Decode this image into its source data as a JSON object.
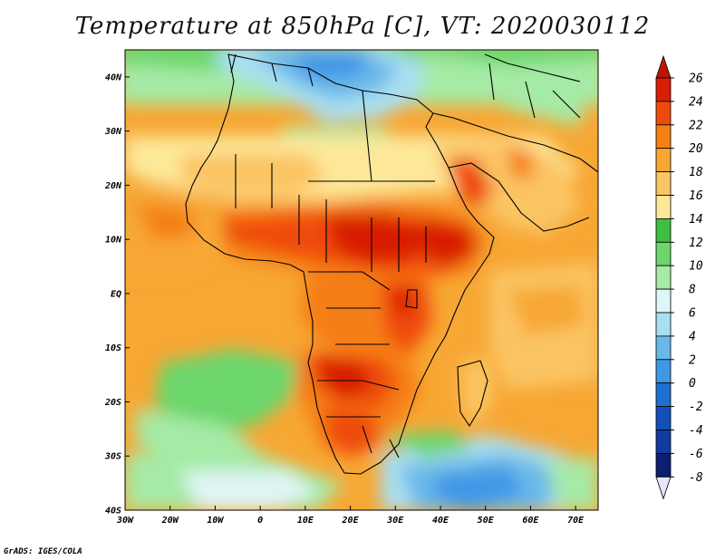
{
  "title": "Temperature at 850hPa [C], VT: 2020030112",
  "credit": "GrADS: IGES/COLA",
  "map": {
    "lat_range": [
      -40,
      45
    ],
    "lon_range": [
      -30,
      75
    ],
    "lat_labels": [
      "40N",
      "30N",
      "20N",
      "10N",
      "EQ",
      "10S",
      "20S",
      "30S",
      "40S"
    ],
    "lon_labels": [
      "30W",
      "20W",
      "10W",
      "0",
      "10E",
      "20E",
      "30E",
      "40E",
      "50E",
      "60E",
      "70E"
    ],
    "features": [
      "Mediterranean Sea",
      "Red Sea",
      "Arabian Peninsula",
      "Madagascar",
      "Lake Victoria"
    ]
  },
  "colorbar": {
    "levels": [
      "26",
      "24",
      "22",
      "20",
      "18",
      "16",
      "14",
      "12",
      "10",
      "8",
      "6",
      "4",
      "2",
      "0",
      "-2",
      "-4",
      "-6",
      "-8"
    ],
    "colors": [
      "#d81e05",
      "#ef4b08",
      "#f57f12",
      "#f7a734",
      "#fbc564",
      "#fde89a",
      "#3fbf3f",
      "#6cd66c",
      "#a5eaa5",
      "#dff5f6",
      "#a9dff0",
      "#6ab8ea",
      "#3f98e6",
      "#1f6fd3",
      "#1250b9",
      "#123a9c",
      "#0c1f71",
      "#d9d9f8"
    ],
    "top_arrow_color": "#c01502",
    "bottom_arrow_color": "#e6e6fb"
  }
}
